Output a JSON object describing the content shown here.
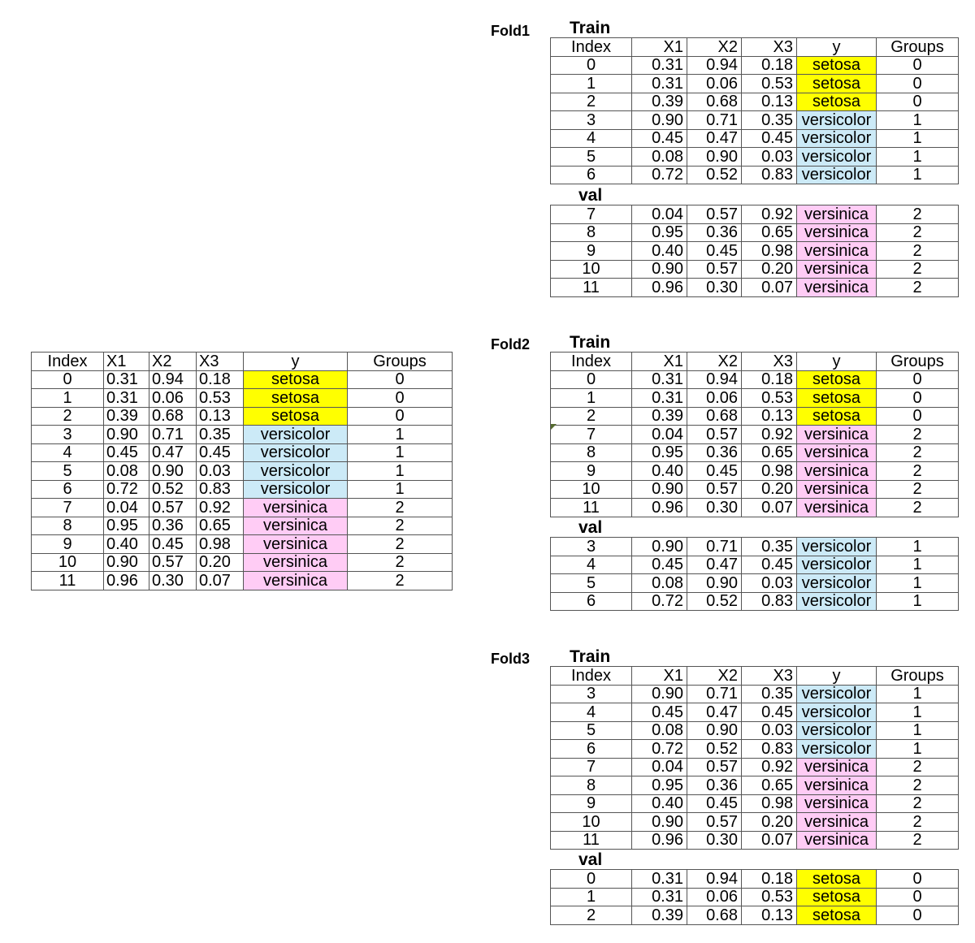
{
  "headers": [
    "Index",
    "X1",
    "X2",
    "X3",
    "y",
    "Groups"
  ],
  "main": {
    "rows": [
      [
        "0",
        "0.31",
        "0.94",
        "0.18",
        "setosa",
        "0"
      ],
      [
        "1",
        "0.31",
        "0.06",
        "0.53",
        "setosa",
        "0"
      ],
      [
        "2",
        "0.39",
        "0.68",
        "0.13",
        "setosa",
        "0"
      ],
      [
        "3",
        "0.90",
        "0.71",
        "0.35",
        "versicolor",
        "1"
      ],
      [
        "4",
        "0.45",
        "0.47",
        "0.45",
        "versicolor",
        "1"
      ],
      [
        "5",
        "0.08",
        "0.90",
        "0.03",
        "versicolor",
        "1"
      ],
      [
        "6",
        "0.72",
        "0.52",
        "0.83",
        "versicolor",
        "1"
      ],
      [
        "7",
        "0.04",
        "0.57",
        "0.92",
        "versinica",
        "2"
      ],
      [
        "8",
        "0.95",
        "0.36",
        "0.65",
        "versinica",
        "2"
      ],
      [
        "9",
        "0.40",
        "0.45",
        "0.98",
        "versinica",
        "2"
      ],
      [
        "10",
        "0.90",
        "0.57",
        "0.20",
        "versinica",
        "2"
      ],
      [
        "11",
        "0.96",
        "0.30",
        "0.07",
        "versinica",
        "2"
      ]
    ]
  },
  "folds": [
    {
      "label": "Fold1",
      "train_label": "Train",
      "val_label": "val",
      "train_rows": [
        [
          "0",
          "0.31",
          "0.94",
          "0.18",
          "setosa",
          "0"
        ],
        [
          "1",
          "0.31",
          "0.06",
          "0.53",
          "setosa",
          "0"
        ],
        [
          "2",
          "0.39",
          "0.68",
          "0.13",
          "setosa",
          "0"
        ],
        [
          "3",
          "0.90",
          "0.71",
          "0.35",
          "versicolor",
          "1"
        ],
        [
          "4",
          "0.45",
          "0.47",
          "0.45",
          "versicolor",
          "1"
        ],
        [
          "5",
          "0.08",
          "0.90",
          "0.03",
          "versicolor",
          "1"
        ],
        [
          "6",
          "0.72",
          "0.52",
          "0.83",
          "versicolor",
          "1"
        ]
      ],
      "val_rows": [
        [
          "7",
          "0.04",
          "0.57",
          "0.92",
          "versinica",
          "2"
        ],
        [
          "8",
          "0.95",
          "0.36",
          "0.65",
          "versinica",
          "2"
        ],
        [
          "9",
          "0.40",
          "0.45",
          "0.98",
          "versinica",
          "2"
        ],
        [
          "10",
          "0.90",
          "0.57",
          "0.20",
          "versinica",
          "2"
        ],
        [
          "11",
          "0.96",
          "0.30",
          "0.07",
          "versinica",
          "2"
        ]
      ]
    },
    {
      "label": "Fold2",
      "train_label": "Train",
      "val_label": "val",
      "train_rows": [
        [
          "0",
          "0.31",
          "0.94",
          "0.18",
          "setosa",
          "0"
        ],
        [
          "1",
          "0.31",
          "0.06",
          "0.53",
          "setosa",
          "0"
        ],
        [
          "2",
          "0.39",
          "0.68",
          "0.13",
          "setosa",
          "0"
        ],
        [
          "7",
          "0.04",
          "0.57",
          "0.92",
          "versinica",
          "2"
        ],
        [
          "8",
          "0.95",
          "0.36",
          "0.65",
          "versinica",
          "2"
        ],
        [
          "9",
          "0.40",
          "0.45",
          "0.98",
          "versinica",
          "2"
        ],
        [
          "10",
          "0.90",
          "0.57",
          "0.20",
          "versinica",
          "2"
        ],
        [
          "11",
          "0.96",
          "0.30",
          "0.07",
          "versinica",
          "2"
        ]
      ],
      "val_rows": [
        [
          "3",
          "0.90",
          "0.71",
          "0.35",
          "versicolor",
          "1"
        ],
        [
          "4",
          "0.45",
          "0.47",
          "0.45",
          "versicolor",
          "1"
        ],
        [
          "5",
          "0.08",
          "0.90",
          "0.03",
          "versicolor",
          "1"
        ],
        [
          "6",
          "0.72",
          "0.52",
          "0.83",
          "versicolor",
          "1"
        ]
      ]
    },
    {
      "label": "Fold3",
      "train_label": "Train",
      "val_label": "val",
      "train_rows": [
        [
          "3",
          "0.90",
          "0.71",
          "0.35",
          "versicolor",
          "1"
        ],
        [
          "4",
          "0.45",
          "0.47",
          "0.45",
          "versicolor",
          "1"
        ],
        [
          "5",
          "0.08",
          "0.90",
          "0.03",
          "versicolor",
          "1"
        ],
        [
          "6",
          "0.72",
          "0.52",
          "0.83",
          "versicolor",
          "1"
        ],
        [
          "7",
          "0.04",
          "0.57",
          "0.92",
          "versinica",
          "2"
        ],
        [
          "8",
          "0.95",
          "0.36",
          "0.65",
          "versinica",
          "2"
        ],
        [
          "9",
          "0.40",
          "0.45",
          "0.98",
          "versinica",
          "2"
        ],
        [
          "10",
          "0.90",
          "0.57",
          "0.20",
          "versinica",
          "2"
        ],
        [
          "11",
          "0.96",
          "0.30",
          "0.07",
          "versinica",
          "2"
        ]
      ],
      "val_rows": [
        [
          "0",
          "0.31",
          "0.94",
          "0.18",
          "setosa",
          "0"
        ],
        [
          "1",
          "0.31",
          "0.06",
          "0.53",
          "setosa",
          "0"
        ],
        [
          "2",
          "0.39",
          "0.68",
          "0.13",
          "setosa",
          "0"
        ]
      ]
    }
  ],
  "class_colors": {
    "setosa": "#ffff00",
    "versicolor": "#cceaf7",
    "versinica": "#ffccf5"
  }
}
